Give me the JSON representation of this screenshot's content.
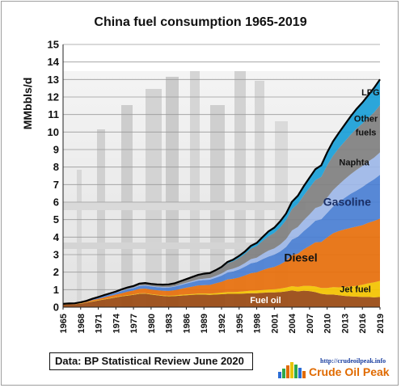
{
  "chart_data": {
    "type": "area",
    "title": "China fuel consumption 1965-2019",
    "ylabel": "MMbbls/d",
    "xlabel": "",
    "ylim": [
      0,
      15
    ],
    "yticks": [
      0,
      1,
      2,
      3,
      4,
      5,
      6,
      7,
      8,
      9,
      10,
      11,
      12,
      13,
      14,
      15
    ],
    "xticks": [
      "1965",
      "1968",
      "1971",
      "1974",
      "1977",
      "1980",
      "1983",
      "1986",
      "1989",
      "1992",
      "1995",
      "1998",
      "2001",
      "2004",
      "2007",
      "2010",
      "2013",
      "2016",
      "2019"
    ],
    "grid": "horizontal",
    "stacked": true,
    "x": [
      1965,
      1966,
      1967,
      1968,
      1969,
      1970,
      1971,
      1972,
      1973,
      1974,
      1975,
      1976,
      1977,
      1978,
      1979,
      1980,
      1981,
      1982,
      1983,
      1984,
      1985,
      1986,
      1987,
      1988,
      1989,
      1990,
      1991,
      1992,
      1993,
      1994,
      1995,
      1996,
      1997,
      1998,
      1999,
      2000,
      2001,
      2002,
      2003,
      2004,
      2005,
      2006,
      2007,
      2008,
      2009,
      2010,
      2011,
      2012,
      2013,
      2014,
      2015,
      2016,
      2017,
      2018,
      2019
    ],
    "series": [
      {
        "name": "Fuel oil",
        "color": "#9a4a12",
        "values": [
          0.14,
          0.16,
          0.17,
          0.2,
          0.26,
          0.32,
          0.38,
          0.44,
          0.5,
          0.56,
          0.62,
          0.66,
          0.7,
          0.76,
          0.77,
          0.72,
          0.68,
          0.64,
          0.62,
          0.63,
          0.66,
          0.68,
          0.7,
          0.72,
          0.72,
          0.7,
          0.72,
          0.74,
          0.76,
          0.76,
          0.76,
          0.78,
          0.8,
          0.8,
          0.82,
          0.84,
          0.84,
          0.86,
          0.9,
          0.96,
          0.9,
          0.94,
          0.92,
          0.86,
          0.76,
          0.72,
          0.72,
          0.68,
          0.64,
          0.62,
          0.6,
          0.58,
          0.58,
          0.56,
          0.58
        ]
      },
      {
        "name": "Jet fuel",
        "color": "#f5c400",
        "values": [
          0.01,
          0.01,
          0.01,
          0.01,
          0.01,
          0.02,
          0.02,
          0.02,
          0.02,
          0.02,
          0.02,
          0.03,
          0.03,
          0.03,
          0.03,
          0.03,
          0.03,
          0.03,
          0.03,
          0.04,
          0.04,
          0.05,
          0.05,
          0.06,
          0.06,
          0.07,
          0.08,
          0.09,
          0.1,
          0.1,
          0.12,
          0.13,
          0.14,
          0.15,
          0.16,
          0.17,
          0.18,
          0.2,
          0.22,
          0.24,
          0.26,
          0.28,
          0.3,
          0.32,
          0.34,
          0.38,
          0.42,
          0.45,
          0.5,
          0.56,
          0.62,
          0.7,
          0.78,
          0.86,
          0.92
        ]
      },
      {
        "name": "Diesel",
        "color": "#e8700c",
        "values": [
          0.02,
          0.02,
          0.02,
          0.03,
          0.04,
          0.06,
          0.08,
          0.1,
          0.12,
          0.14,
          0.16,
          0.2,
          0.22,
          0.26,
          0.26,
          0.26,
          0.26,
          0.27,
          0.28,
          0.3,
          0.34,
          0.38,
          0.42,
          0.46,
          0.48,
          0.5,
          0.56,
          0.62,
          0.72,
          0.76,
          0.82,
          0.9,
          1.0,
          1.04,
          1.14,
          1.22,
          1.28,
          1.38,
          1.52,
          1.76,
          1.9,
          2.08,
          2.28,
          2.52,
          2.62,
          2.88,
          3.08,
          3.22,
          3.3,
          3.35,
          3.38,
          3.4,
          3.46,
          3.5,
          3.56
        ]
      },
      {
        "name": "Gasoline",
        "color": "#4a7fd4",
        "values": [
          0.02,
          0.02,
          0.02,
          0.03,
          0.04,
          0.05,
          0.06,
          0.08,
          0.09,
          0.1,
          0.12,
          0.13,
          0.14,
          0.16,
          0.17,
          0.17,
          0.17,
          0.18,
          0.19,
          0.2,
          0.22,
          0.24,
          0.26,
          0.28,
          0.29,
          0.3,
          0.32,
          0.35,
          0.4,
          0.42,
          0.45,
          0.5,
          0.56,
          0.58,
          0.62,
          0.66,
          0.7,
          0.74,
          0.8,
          0.9,
          0.96,
          1.04,
          1.12,
          1.24,
          1.3,
          1.4,
          1.52,
          1.65,
          1.8,
          1.94,
          2.06,
          2.18,
          2.28,
          2.38,
          2.5
        ]
      },
      {
        "name": "Naphta",
        "color": "#9db7e8",
        "values": [
          0.0,
          0.0,
          0.0,
          0.0,
          0.0,
          0.01,
          0.01,
          0.01,
          0.01,
          0.01,
          0.02,
          0.02,
          0.02,
          0.03,
          0.03,
          0.03,
          0.03,
          0.03,
          0.03,
          0.03,
          0.04,
          0.05,
          0.06,
          0.07,
          0.08,
          0.09,
          0.1,
          0.12,
          0.14,
          0.16,
          0.18,
          0.21,
          0.24,
          0.26,
          0.3,
          0.34,
          0.36,
          0.4,
          0.45,
          0.52,
          0.56,
          0.62,
          0.68,
          0.72,
          0.76,
          0.88,
          0.94,
          1.0,
          1.06,
          1.12,
          1.18,
          1.2,
          1.22,
          1.24,
          1.28
        ]
      },
      {
        "name": "Other fuels",
        "color": "#808080",
        "values": [
          0.0,
          0.0,
          0.0,
          0.01,
          0.01,
          0.02,
          0.03,
          0.04,
          0.05,
          0.06,
          0.07,
          0.08,
          0.09,
          0.1,
          0.11,
          0.11,
          0.12,
          0.13,
          0.14,
          0.15,
          0.16,
          0.18,
          0.2,
          0.22,
          0.24,
          0.25,
          0.28,
          0.32,
          0.38,
          0.42,
          0.48,
          0.52,
          0.6,
          0.66,
          0.74,
          0.82,
          0.88,
          0.98,
          1.08,
          1.22,
          1.32,
          1.42,
          1.52,
          1.6,
          1.66,
          1.84,
          1.96,
          2.08,
          2.16,
          2.26,
          2.36,
          2.42,
          2.5,
          2.58,
          2.7
        ]
      },
      {
        "name": "LPG",
        "color": "#1aa0d8",
        "values": [
          0.0,
          0.0,
          0.0,
          0.0,
          0.0,
          0.0,
          0.0,
          0.0,
          0.0,
          0.0,
          0.01,
          0.01,
          0.01,
          0.01,
          0.01,
          0.01,
          0.01,
          0.01,
          0.01,
          0.01,
          0.02,
          0.02,
          0.03,
          0.03,
          0.04,
          0.04,
          0.05,
          0.06,
          0.08,
          0.1,
          0.12,
          0.14,
          0.16,
          0.18,
          0.22,
          0.28,
          0.3,
          0.34,
          0.38,
          0.42,
          0.46,
          0.52,
          0.58,
          0.62,
          0.66,
          0.74,
          0.82,
          0.88,
          0.96,
          1.04,
          1.12,
          1.2,
          1.28,
          1.4,
          1.46
        ]
      }
    ],
    "total_line": {
      "color": "#000000"
    },
    "labels": [
      {
        "text": "LPG",
        "year": 2017.4,
        "y": 12.1,
        "color": "#111111"
      },
      {
        "text": "Other",
        "year": 2016.6,
        "y": 10.6,
        "color": "#111111"
      },
      {
        "text": "fuels",
        "year": 2016.6,
        "y": 9.8,
        "color": "#111111"
      },
      {
        "text": "Naphta",
        "year": 2014.6,
        "y": 8.1,
        "color": "#111111"
      },
      {
        "text": "Gasoline",
        "year": 2013.4,
        "y": 5.8,
        "color": "#1a2f66"
      },
      {
        "text": "Diesel",
        "year": 2005.5,
        "y": 2.6,
        "color": "#111111"
      },
      {
        "text": "Jet fuel",
        "year": 2014.8,
        "y": 0.85,
        "color": "#111111"
      },
      {
        "text": "Fuel oil",
        "year": 1999.5,
        "y": 0.24,
        "color": "#ffffff"
      }
    ]
  },
  "footer": {
    "source": "Data: BP Statistical Review June 2020",
    "logo_url": "http://crudeoilpeak.info",
    "logo_name": "Crude Oil Peak"
  }
}
